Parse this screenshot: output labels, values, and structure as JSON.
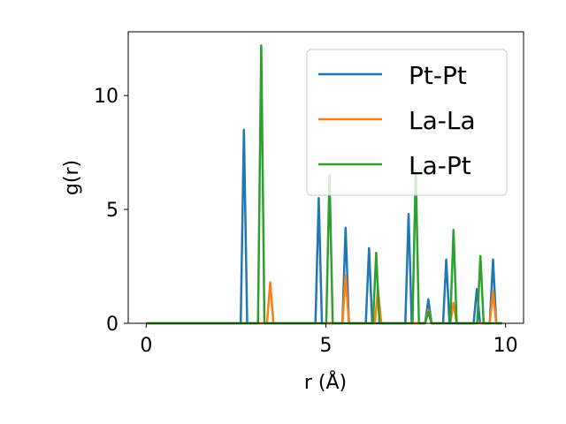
{
  "chart_data": {
    "type": "line",
    "xlabel": "r (Å)",
    "ylabel": "g(r)",
    "xlim": [
      -0.5,
      10.5
    ],
    "ylim": [
      0,
      12.8
    ],
    "xticks": [
      0,
      5,
      10
    ],
    "yticks": [
      0,
      5,
      10
    ],
    "grid": false,
    "legend_position": "top-right",
    "series": [
      {
        "name": "Pt-Pt",
        "color": "#1f77b4",
        "peaks": [
          [
            2.72,
            8.5
          ],
          [
            4.8,
            5.5
          ],
          [
            5.55,
            4.2
          ],
          [
            6.2,
            3.3
          ],
          [
            7.3,
            4.8
          ],
          [
            7.85,
            1.05
          ],
          [
            8.35,
            2.8
          ],
          [
            9.2,
            1.5
          ],
          [
            9.65,
            2.8
          ]
        ]
      },
      {
        "name": "La-La",
        "color": "#ff7f0e",
        "peaks": [
          [
            3.45,
            1.8
          ],
          [
            5.55,
            2.1
          ],
          [
            6.45,
            1.5
          ],
          [
            7.85,
            0.6
          ],
          [
            8.55,
            0.9
          ],
          [
            9.65,
            1.4
          ]
        ]
      },
      {
        "name": "La-Pt",
        "color": "#2ca02c",
        "peaks": [
          [
            3.2,
            12.2
          ],
          [
            5.1,
            6.5
          ],
          [
            6.4,
            3.1
          ],
          [
            7.5,
            6.7
          ],
          [
            7.85,
            0.5
          ],
          [
            8.55,
            4.1
          ],
          [
            9.3,
            2.95
          ]
        ]
      }
    ]
  }
}
